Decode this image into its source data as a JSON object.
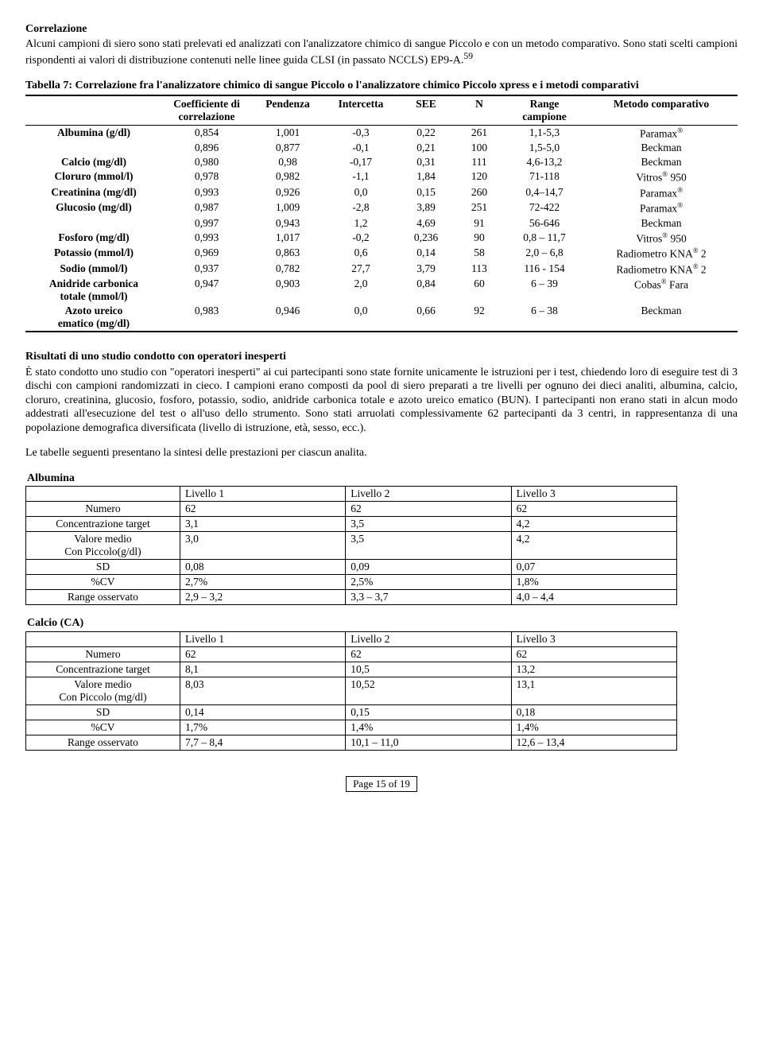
{
  "correlazione": {
    "title": "Correlazione",
    "p1": "Alcuni campioni di siero sono stati prelevati ed analizzati con l'analizzatore chimico di sangue Piccolo e con un metodo comparativo. Sono stati scelti campioni rispondenti ai valori di distribuzione contenuti nelle linee guida CLSI (in passato NCCLS) EP9-A.",
    "refnum": "59"
  },
  "table7": {
    "title": "Tabella 7: Correlazione fra l'analizzatore chimico di sangue Piccolo o l'analizzatore chimico Piccolo xpress e i metodi comparativi",
    "headers": {
      "coef": "Coefficiente di correlazione",
      "pend": "Pendenza",
      "int": "Intercetta",
      "see": "SEE",
      "n": "N",
      "range": "Range campione",
      "metodo": "Metodo comparativo"
    },
    "rows": [
      {
        "label": "Albumina (g/dl)",
        "coef": "0,854",
        "pend": "1,001",
        "int": "-0,3",
        "see": "0,22",
        "n": "261",
        "range": "1,1-5,3",
        "metodo": "Paramax",
        "sup": "®"
      },
      {
        "label": "",
        "coef": "0,896",
        "pend": "0,877",
        "int": "-0,1",
        "see": "0,21",
        "n": "100",
        "range": "1,5-5,0",
        "metodo": "Beckman",
        "sup": ""
      },
      {
        "label": "Calcio (mg/dl)",
        "coef": "0,980",
        "pend": "0,98",
        "int": "-0,17",
        "see": "0,31",
        "n": "111",
        "range": "4,6-13,2",
        "metodo": "Beckman",
        "sup": ""
      },
      {
        "label": "Cloruro (mmol/l)",
        "coef": "0,978",
        "pend": "0,982",
        "int": "-1,1",
        "see": "1,84",
        "n": "120",
        "range": "71-118",
        "metodo": "Vitros",
        "sup": "® 950"
      },
      {
        "label": "Creatinina (mg/dl)",
        "coef": "0,993",
        "pend": "0,926",
        "int": "0,0",
        "see": "0,15",
        "n": "260",
        "range": "0,4–14,7",
        "metodo": "Paramax",
        "sup": "®"
      },
      {
        "label": "Glucosio (mg/dl)",
        "coef": "0,987",
        "pend": "1,009",
        "int": "-2,8",
        "see": "3,89",
        "n": "251",
        "range": "72-422",
        "metodo": "Paramax",
        "sup": "®"
      },
      {
        "label": "",
        "coef": "0,997",
        "pend": "0,943",
        "int": "1,2",
        "see": "4,69",
        "n": "91",
        "range": "56-646",
        "metodo": "Beckman",
        "sup": ""
      },
      {
        "label": "Fosforo (mg/dl)",
        "coef": "0,993",
        "pend": "1,017",
        "int": "-0,2",
        "see": "0,236",
        "n": "90",
        "range": "0,8 – 11,7",
        "metodo": "Vitros",
        "sup": "® 950"
      },
      {
        "label": "Potassio (mmol/l)",
        "coef": "0,969",
        "pend": "0,863",
        "int": "0,6",
        "see": "0,14",
        "n": "58",
        "range": "2,0 – 6,8",
        "metodo": "Radiometro KNA",
        "sup": "® 2"
      },
      {
        "label": "Sodio (mmol/l)",
        "coef": "0,937",
        "pend": "0,782",
        "int": "27,7",
        "see": "3,79",
        "n": "113",
        "range": "116 - 154",
        "metodo": "Radiometro KNA",
        "sup": "® 2"
      },
      {
        "label": "Anidride carbonica totale (mmol/l)",
        "coef": "0,947",
        "pend": "0,903",
        "int": "2,0",
        "see": "0,84",
        "n": "60",
        "range": "6 – 39",
        "metodo": "Cobas",
        "sup": "® Fara"
      },
      {
        "label": "Azoto ureico ematico (mg/dl)",
        "coef": "0,983",
        "pend": "0,946",
        "int": "0,0",
        "see": "0,66",
        "n": "92",
        "range": "6 – 38",
        "metodo": "Beckman",
        "sup": ""
      }
    ]
  },
  "study": {
    "title": "Risultati di uno studio condotto con operatori inesperti",
    "p1": "È stato condotto uno studio con \"operatori inesperti\" ai cui partecipanti sono state fornite unicamente le istruzioni per i test, chiedendo loro di eseguire test di 3 dischi con campioni randomizzati in cieco. I campioni erano composti da pool di siero preparati a tre livelli per ognuno dei dieci analiti, albumina, calcio, cloruro, creatinina, glucosio, fosforo, potassio, sodio, anidride carbonica totale e azoto ureico ematico (BUN).  I partecipanti non erano stati in alcun modo addestrati all'esecuzione del test o all'uso dello strumento. Sono stati arruolati complessivamente 62 partecipanti da 3 centri, in rappresentanza di una popolazione demografica diversificata (livello di istruzione, età, sesso, ecc.).",
    "p2": "Le tabelle seguenti presentano la sintesi delle prestazioni per ciascun analita."
  },
  "levelHeaders": [
    "Livello 1",
    "Livello 2",
    "Livello 3"
  ],
  "rowLabels": {
    "numero": "Numero",
    "conc": "Concentrazione target",
    "valore_a": "Valore medio",
    "valore_b_alb": "Con Piccolo(g/dl)",
    "valore_b_cal": "Con Piccolo (mg/dl)",
    "sd": "SD",
    "cv": "%CV",
    "range": "Range osservato"
  },
  "albumina": {
    "title": "Albumina",
    "numero": [
      "62",
      "62",
      "62"
    ],
    "conc": [
      "3,1",
      "3,5",
      "4,2"
    ],
    "valore": [
      "3,0",
      "3,5",
      "4,2"
    ],
    "sd": [
      "0,08",
      "0,09",
      "0,07"
    ],
    "cv": [
      "2,7%",
      "2,5%",
      "1,8%"
    ],
    "range": [
      "2,9 – 3,2",
      "3,3 – 3,7",
      "4,0 – 4,4"
    ]
  },
  "calcio": {
    "title": "Calcio (CA)",
    "numero": [
      "62",
      "62",
      "62"
    ],
    "conc": [
      "8,1",
      "10,5",
      "13,2"
    ],
    "valore": [
      "8,03",
      "10,52",
      "13,1"
    ],
    "sd": [
      "0,14",
      "0,15",
      "0,18"
    ],
    "cv": [
      "1,7%",
      "1,4%",
      "1,4%"
    ],
    "range": [
      "7,7 – 8,4",
      "10,1 – 11,0",
      "12,6 – 13,4"
    ]
  },
  "footer": "Page 15 of 19"
}
